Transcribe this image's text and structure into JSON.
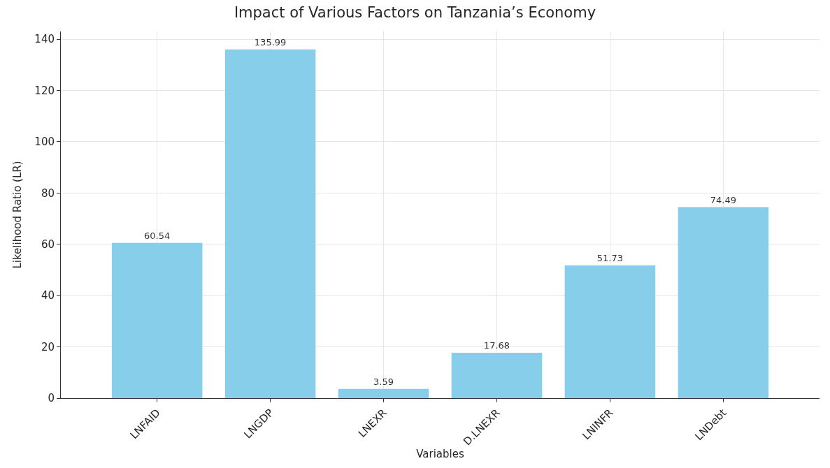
{
  "chart_data": {
    "type": "bar",
    "title": "Impact of Various Factors on Tanzania’s Economy",
    "xlabel": "Variables",
    "ylabel": "Likelihood Ratio (LR)",
    "categories": [
      "LNFAID",
      "LNGDP",
      "LNEXR",
      "D.LNEXR",
      "LNINFR",
      "LNDebt"
    ],
    "values": [
      60.54,
      135.99,
      3.59,
      17.68,
      51.73,
      74.49
    ],
    "color": "#87ceeb",
    "data_labels": true,
    "ylim": [
      0,
      143
    ],
    "yticks": [
      0,
      20,
      40,
      60,
      80,
      100,
      120,
      140
    ],
    "grid": true
  }
}
